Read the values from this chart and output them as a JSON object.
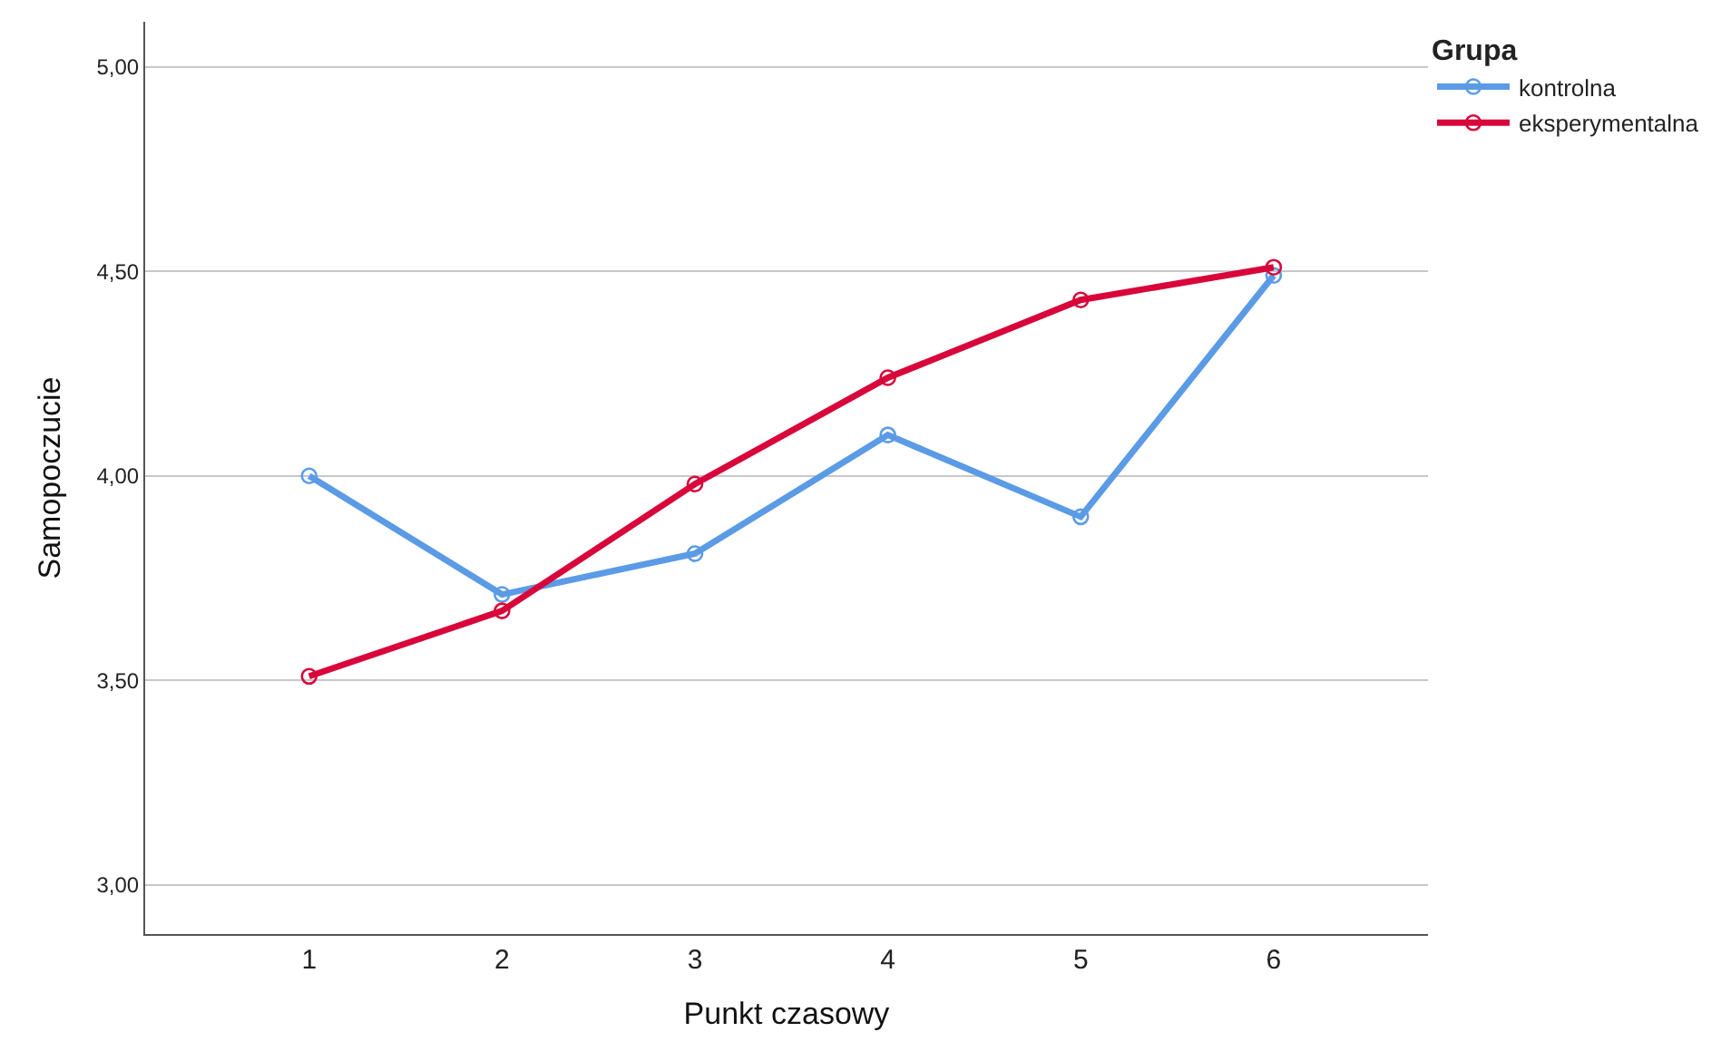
{
  "chart_data": {
    "type": "line",
    "xlabel": "Punkt czasowy",
    "ylabel": "Samopoczucie",
    "legend_title": "Grupa",
    "categories": [
      "1",
      "2",
      "3",
      "4",
      "5",
      "6"
    ],
    "series": [
      {
        "name": "kontrolna",
        "color": "#5b9be6",
        "values": [
          4.0,
          3.71,
          3.81,
          4.1,
          3.9,
          4.49
        ]
      },
      {
        "name": "eksperymentalna",
        "color": "#d8063a",
        "values": [
          3.51,
          3.67,
          3.98,
          4.24,
          4.43,
          4.51
        ]
      }
    ],
    "ylim": [
      2.88,
      5.11
    ],
    "yticks": [
      {
        "value": 3,
        "label": "3,00"
      },
      {
        "value": 3.5,
        "label": "3,50"
      },
      {
        "value": 4,
        "label": "4,00"
      },
      {
        "value": 4.5,
        "label": "4,50"
      },
      {
        "value": 5,
        "label": "5,00"
      }
    ],
    "grid": "y",
    "legend": "top right",
    "marker": "circle",
    "line_style": "solid"
  }
}
